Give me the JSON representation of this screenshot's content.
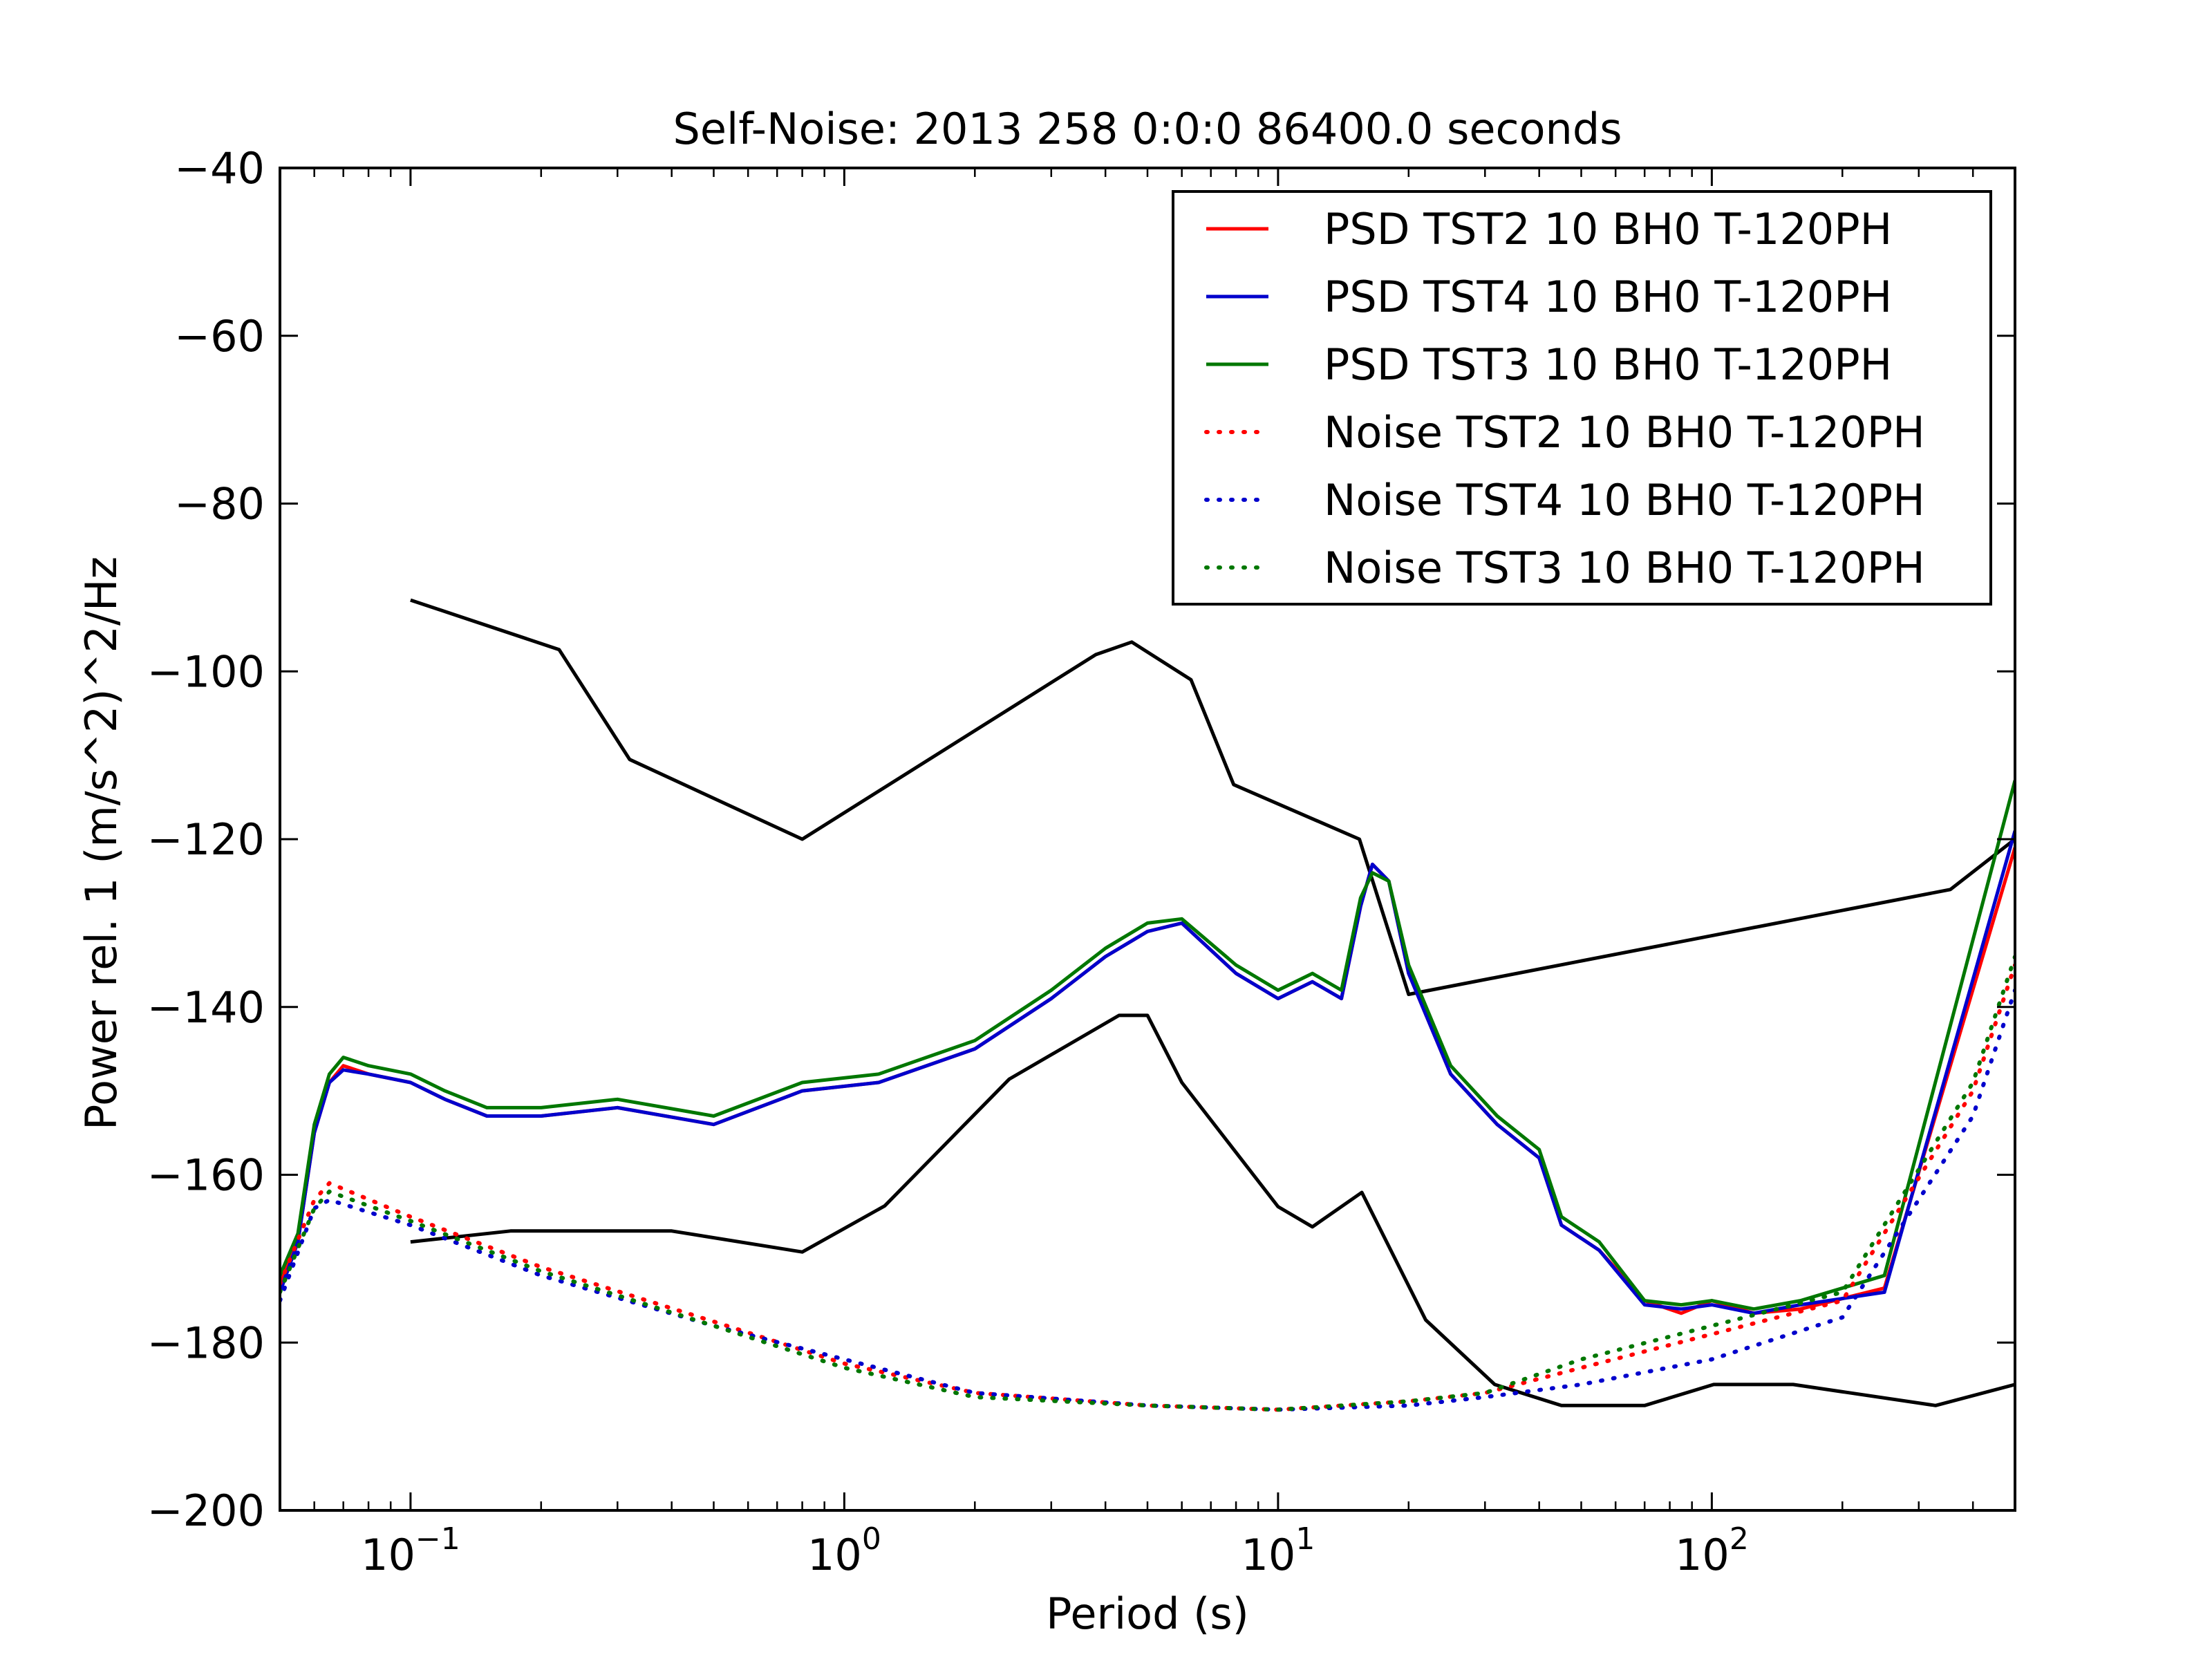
{
  "chart_data": {
    "type": "line",
    "title": "Self-Noise: 2013 258 0:0:0 86400.0 seconds",
    "xlabel": "Period (s)",
    "ylabel": "Power rel. 1 (m/s^2)^2/Hz",
    "xscale": "log",
    "xlim": [
      0.05,
      500
    ],
    "ylim": [
      -200,
      -40
    ],
    "yticks": [
      -40,
      -60,
      -80,
      -100,
      -120,
      -140,
      -160,
      -180,
      -200
    ],
    "ytick_labels": [
      "−40",
      "−60",
      "−80",
      "−100",
      "−120",
      "−140",
      "−160",
      "−180",
      "−200"
    ],
    "xticks": [
      {
        "value": 0.1,
        "base": "10",
        "exp": "−1"
      },
      {
        "value": 1,
        "base": "10",
        "exp": "0"
      },
      {
        "value": 10,
        "base": "10",
        "exp": "1"
      },
      {
        "value": 100,
        "base": "10",
        "exp": "2"
      }
    ],
    "grid": false,
    "legend_position": "top-right",
    "reference_curves": [
      {
        "label": "",
        "color": "#000000",
        "x": [
          0.1,
          0.22,
          0.32,
          0.8,
          3.8,
          4.6,
          6.3,
          7.9,
          15.4,
          20,
          354.8,
          500
        ],
        "y": [
          -91.5,
          -97.4,
          -110.5,
          -120,
          -98,
          -96.5,
          -101,
          -113.5,
          -120,
          -138.5,
          -126,
          -120
        ]
      },
      {
        "label": "",
        "color": "#000000",
        "x": [
          0.1,
          0.17,
          0.4,
          0.8,
          1.24,
          2.4,
          4.3,
          5,
          6,
          10,
          12,
          15.6,
          21.9,
          31.6,
          45,
          70,
          101,
          154,
          328,
          500
        ],
        "y": [
          -168,
          -166.7,
          -166.7,
          -169.2,
          -163.7,
          -148.6,
          -141,
          -141,
          -149,
          -163.8,
          -166.2,
          -162.1,
          -177.3,
          -185,
          -187.5,
          -187.5,
          -185,
          -185,
          -187.5,
          -185
        ]
      }
    ],
    "series": [
      {
        "name": "PSD TST2 10 BH0 T-120PH",
        "color": "#ff0000",
        "style": "solid",
        "x": [
          0.05,
          0.055,
          0.06,
          0.065,
          0.07,
          0.08,
          0.1,
          0.12,
          0.15,
          0.2,
          0.3,
          0.5,
          0.8,
          1.2,
          2,
          3,
          4,
          5,
          6,
          8,
          10,
          12,
          14,
          15.5,
          16.5,
          18,
          20,
          25,
          32,
          40,
          45,
          55,
          70,
          85,
          100,
          125,
          160,
          250,
          500
        ],
        "y": [
          -173,
          -168,
          -155,
          -149,
          -147,
          -148,
          -149,
          -151,
          -153,
          -153,
          -152,
          -154,
          -150,
          -149,
          -145,
          -139,
          -134,
          -131,
          -130,
          -136,
          -139,
          -137,
          -139,
          -128,
          -123,
          -125,
          -136,
          -148,
          -154,
          -158,
          -166,
          -169,
          -175,
          -176.5,
          -175,
          -176.5,
          -176,
          -173.5,
          -121
        ]
      },
      {
        "name": "PSD TST4 10 BH0 T-120PH",
        "color": "#0000cc",
        "style": "solid",
        "x": [
          0.05,
          0.055,
          0.06,
          0.065,
          0.07,
          0.08,
          0.1,
          0.12,
          0.15,
          0.2,
          0.3,
          0.5,
          0.8,
          1.2,
          2,
          3,
          4,
          5,
          6,
          8,
          10,
          12,
          14,
          15.5,
          16.5,
          18,
          20,
          25,
          32,
          40,
          45,
          55,
          70,
          85,
          100,
          125,
          160,
          250,
          500
        ],
        "y": [
          -174,
          -168,
          -155,
          -149,
          -147.5,
          -148,
          -149,
          -151,
          -153,
          -153,
          -152,
          -154,
          -150,
          -149,
          -145,
          -139,
          -134,
          -131,
          -130,
          -136,
          -139,
          -137,
          -139,
          -128,
          -123,
          -125,
          -136,
          -148,
          -154,
          -158,
          -166,
          -169,
          -175.5,
          -176,
          -175.5,
          -176.5,
          -175.5,
          -174,
          -119
        ]
      },
      {
        "name": "PSD TST3 10 BH0 T-120PH",
        "color": "#007700",
        "style": "solid",
        "x": [
          0.05,
          0.055,
          0.06,
          0.065,
          0.07,
          0.08,
          0.1,
          0.12,
          0.15,
          0.2,
          0.3,
          0.5,
          0.8,
          1.2,
          2,
          3,
          4,
          5,
          6,
          8,
          10,
          12,
          14,
          15.5,
          16.5,
          18,
          20,
          25,
          32,
          40,
          45,
          55,
          70,
          85,
          100,
          125,
          160,
          250,
          500
        ],
        "y": [
          -172,
          -167,
          -154,
          -148,
          -146,
          -147,
          -148,
          -150,
          -152,
          -152,
          -151,
          -153,
          -149,
          -148,
          -144,
          -138,
          -133,
          -130,
          -129.5,
          -135,
          -138,
          -136,
          -138,
          -127,
          -124,
          -125,
          -135,
          -147,
          -153,
          -157,
          -165,
          -168,
          -175,
          -175.5,
          -175,
          -176,
          -175,
          -172,
          -113
        ]
      },
      {
        "name": "Noise TST2 10 BH0 T-120PH",
        "color": "#ff0000",
        "style": "dotted",
        "x": [
          0.05,
          0.06,
          0.065,
          0.1,
          0.2,
          0.5,
          1,
          2,
          5,
          10,
          20,
          30,
          50,
          100,
          200,
          400,
          500
        ],
        "y": [
          -173,
          -163,
          -161,
          -165,
          -171,
          -177.5,
          -182.5,
          -186,
          -187.5,
          -188,
          -187,
          -186,
          -183,
          -179,
          -175,
          -150,
          -135
        ]
      },
      {
        "name": "Noise TST4 10 BH0 T-120PH",
        "color": "#0000cc",
        "style": "dotted",
        "x": [
          0.05,
          0.06,
          0.065,
          0.1,
          0.2,
          0.5,
          1,
          2,
          5,
          10,
          20,
          30,
          50,
          100,
          200,
          400,
          500
        ],
        "y": [
          -175,
          -164,
          -163,
          -166,
          -172,
          -178,
          -182,
          -186,
          -187.5,
          -188,
          -187.5,
          -186.5,
          -185,
          -182,
          -177,
          -153,
          -138
        ]
      },
      {
        "name": "Noise TST3 10 BH0 T-120PH",
        "color": "#007700",
        "style": "dotted",
        "x": [
          0.05,
          0.06,
          0.065,
          0.1,
          0.2,
          0.5,
          1,
          2,
          5,
          10,
          20,
          30,
          50,
          100,
          200,
          400,
          500
        ],
        "y": [
          -174,
          -164,
          -162,
          -165.5,
          -171.5,
          -178,
          -183,
          -186.5,
          -187.5,
          -188,
          -187,
          -186,
          -182,
          -178,
          -174,
          -149,
          -134
        ]
      }
    ]
  }
}
